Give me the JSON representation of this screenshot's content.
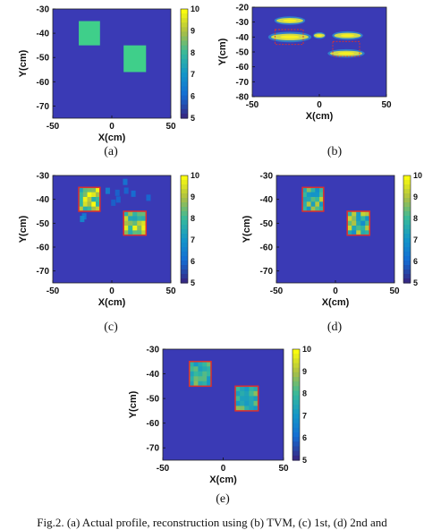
{
  "colors": {
    "background": "#3a3ab5",
    "mid": "#2fa8a4",
    "target": "#3fcf8a",
    "bright": "#d8d24a",
    "outline": "#e0302a"
  },
  "chart_data": [
    {
      "id": "a",
      "type": "heatmap",
      "sublabel": "(a)",
      "xlabel": "X(cm)",
      "ylabel": "Y(cm)",
      "xlim": [
        -50,
        50
      ],
      "ylim": [
        -75,
        -30
      ],
      "xticks": [
        "-50",
        "0",
        "50"
      ],
      "yticks": [
        "-30",
        "-40",
        "-50",
        "-60",
        "-70"
      ],
      "colorbar": {
        "min": 5,
        "max": 10,
        "ticks": [
          "10",
          "9",
          "8",
          "7",
          "6",
          "5"
        ]
      },
      "regions": [
        {
          "x": [
            -28,
            -10
          ],
          "y": [
            -35,
            -45
          ],
          "value": 8
        },
        {
          "x": [
            10,
            29
          ],
          "y": [
            -45,
            -56
          ],
          "value": 8
        }
      ]
    },
    {
      "id": "b",
      "type": "heatmap",
      "sublabel": "(b)",
      "xlabel": "X(cm)",
      "ylabel": "Y(cm)",
      "xlim": [
        -50,
        50
      ],
      "ylim": [
        -80,
        -20
      ],
      "xticks": [
        "-50",
        "0",
        "50"
      ],
      "yticks": [
        "-20",
        "-30",
        "-40",
        "-50",
        "-60",
        "-70",
        "-80"
      ],
      "blobs": [
        {
          "x": -22,
          "y": -29,
          "rx": 10,
          "ry": 1.8
        },
        {
          "x": -22,
          "y": -40,
          "rx": 14,
          "ry": 2.2
        },
        {
          "x": 0,
          "y": -39,
          "rx": 4,
          "ry": 1.4
        },
        {
          "x": 21,
          "y": -39,
          "rx": 10,
          "ry": 1.8
        },
        {
          "x": 20,
          "y": -51,
          "rx": 12,
          "ry": 1.8
        }
      ],
      "outlines": [
        {
          "x": [
            -33,
            -12
          ],
          "y": [
            -35,
            -45
          ]
        },
        {
          "x": [
            10,
            30
          ],
          "y": [
            -43,
            -53
          ]
        }
      ]
    },
    {
      "id": "c",
      "type": "heatmap",
      "sublabel": "(c)",
      "xlabel": "X(cm)",
      "ylabel": "Y(cm)",
      "xlim": [
        -50,
        50
      ],
      "ylim": [
        -75,
        -30
      ],
      "xticks": [
        "-50",
        "0",
        "50"
      ],
      "yticks": [
        "-30",
        "-40",
        "-50",
        "-60",
        "-70"
      ],
      "colorbar": {
        "min": 5,
        "max": 10,
        "ticks": [
          "10",
          "9",
          "8",
          "7",
          "6",
          "5"
        ]
      },
      "target_boxes": [
        {
          "x": [
            -28,
            -10
          ],
          "y": [
            -35,
            -45
          ]
        },
        {
          "x": [
            10,
            29
          ],
          "y": [
            -45,
            -55
          ]
        }
      ]
    },
    {
      "id": "d",
      "type": "heatmap",
      "sublabel": "(d)",
      "xlabel": "X(cm)",
      "ylabel": "Y(cm)",
      "xlim": [
        -50,
        50
      ],
      "ylim": [
        -75,
        -30
      ],
      "xticks": [
        "-50",
        "0",
        "50"
      ],
      "yticks": [
        "-30",
        "-40",
        "-50",
        "-60",
        "-70"
      ],
      "colorbar": {
        "min": 5,
        "max": 10,
        "ticks": [
          "10",
          "9",
          "8",
          "7",
          "6",
          "5"
        ]
      },
      "target_boxes": [
        {
          "x": [
            -28,
            -10
          ],
          "y": [
            -35,
            -45
          ]
        },
        {
          "x": [
            10,
            29
          ],
          "y": [
            -45,
            -55
          ]
        }
      ]
    },
    {
      "id": "e",
      "type": "heatmap",
      "sublabel": "(e)",
      "xlabel": "X(cm)",
      "ylabel": "Y(cm)",
      "xlim": [
        -50,
        50
      ],
      "ylim": [
        -75,
        -30
      ],
      "xticks": [
        "-50",
        "0",
        "50"
      ],
      "yticks": [
        "-30",
        "-40",
        "-50",
        "-60",
        "-70"
      ],
      "colorbar": {
        "min": 5,
        "max": 10,
        "ticks": [
          "10",
          "9",
          "8",
          "7",
          "6",
          "5"
        ]
      },
      "target_boxes": [
        {
          "x": [
            -28,
            -10
          ],
          "y": [
            -35,
            -45
          ]
        },
        {
          "x": [
            10,
            29
          ],
          "y": [
            -45,
            -55
          ]
        }
      ]
    }
  ],
  "caption": "Fig.2. (a) Actual profile, reconstruction using (b) TVM, (c) 1st, (d) 2nd and"
}
